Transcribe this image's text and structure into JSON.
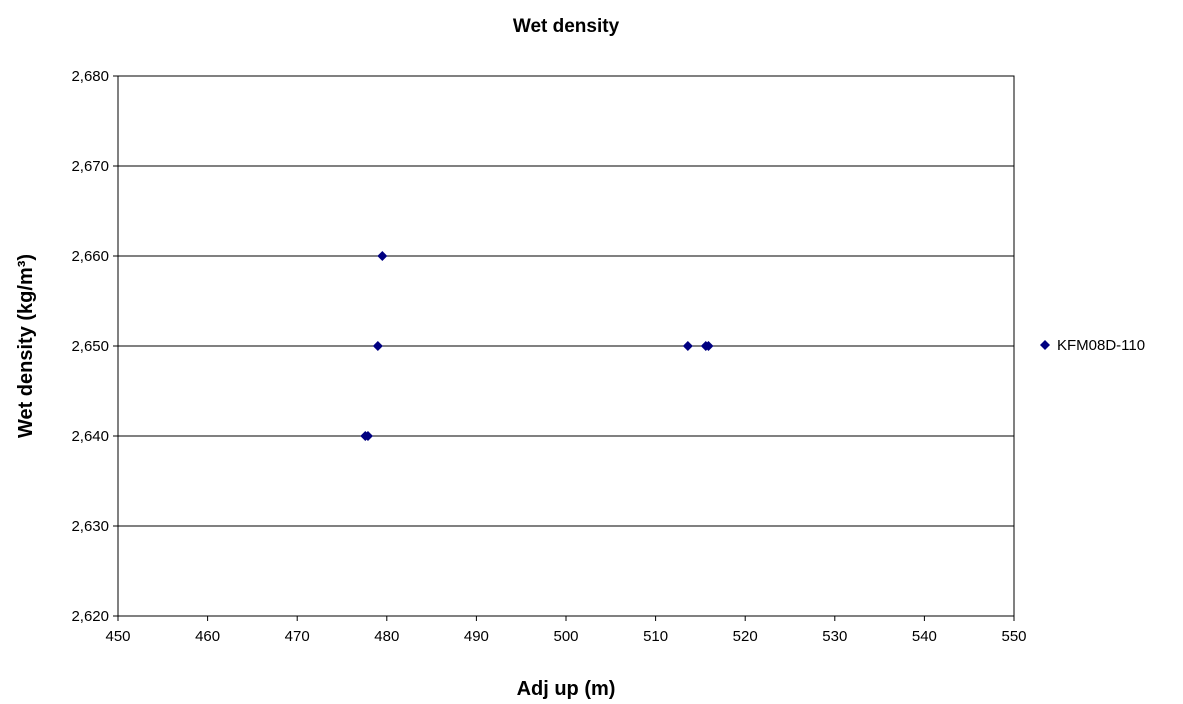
{
  "chart_data": {
    "type": "scatter",
    "title": "Wet density",
    "xlabel": "Adj up (m)",
    "ylabel": "Wet density (kg/m³)",
    "xlim": [
      450,
      550
    ],
    "ylim": [
      2620,
      2680
    ],
    "x_ticks": [
      "450",
      "460",
      "470",
      "480",
      "490",
      "500",
      "510",
      "520",
      "530",
      "540",
      "550"
    ],
    "y_ticks": [
      "2,620",
      "2,630",
      "2,640",
      "2,650",
      "2,660",
      "2,670",
      "2,680"
    ],
    "grid": "horizontal",
    "legend_position": "right",
    "series": [
      {
        "name": "KFM08D-110",
        "marker": "diamond",
        "color": "#000080",
        "points": [
          {
            "x": 479.5,
            "y": 2660
          },
          {
            "x": 479.0,
            "y": 2650
          },
          {
            "x": 477.6,
            "y": 2640
          },
          {
            "x": 477.9,
            "y": 2640
          },
          {
            "x": 513.6,
            "y": 2650
          },
          {
            "x": 515.6,
            "y": 2650
          },
          {
            "x": 515.9,
            "y": 2650
          }
        ]
      }
    ]
  }
}
